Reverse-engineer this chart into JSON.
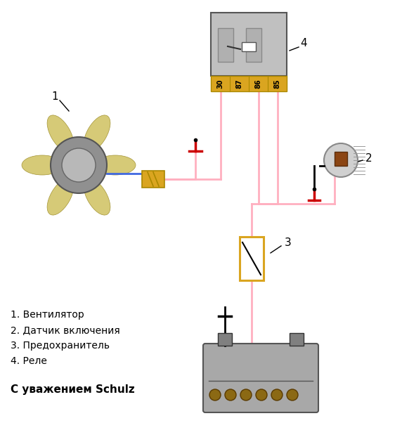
{
  "bg_color": "#ffffff",
  "wire_color_pink": "#FFB0C0",
  "wire_color_black": "#000000",
  "wire_color_blue": "#4169E1",
  "wire_color_red": "#CC0000",
  "fan_blade_color": "#D4C870",
  "fan_blade_edge": "#A09030",
  "motor_color": "#909090",
  "motor_edge": "#555555",
  "relay_body_color": "#C0C0C0",
  "relay_edge": "#555555",
  "relay_pin_color": "#DAA520",
  "relay_pin_edge": "#AA8800",
  "connector_color": "#DAA520",
  "connector_edge": "#AA8800",
  "fuse_color": "#DAA520",
  "sensor_body_color": "#D0D0D0",
  "battery_color": "#A0A0A0",
  "legend_items": [
    "1. Вентилятор",
    "2. Датчик включения",
    "3. Предохранитель",
    "4. Реле"
  ],
  "signature": "С уважением Schulz",
  "relay_pins": [
    "30",
    "87",
    "86",
    "85"
  ]
}
